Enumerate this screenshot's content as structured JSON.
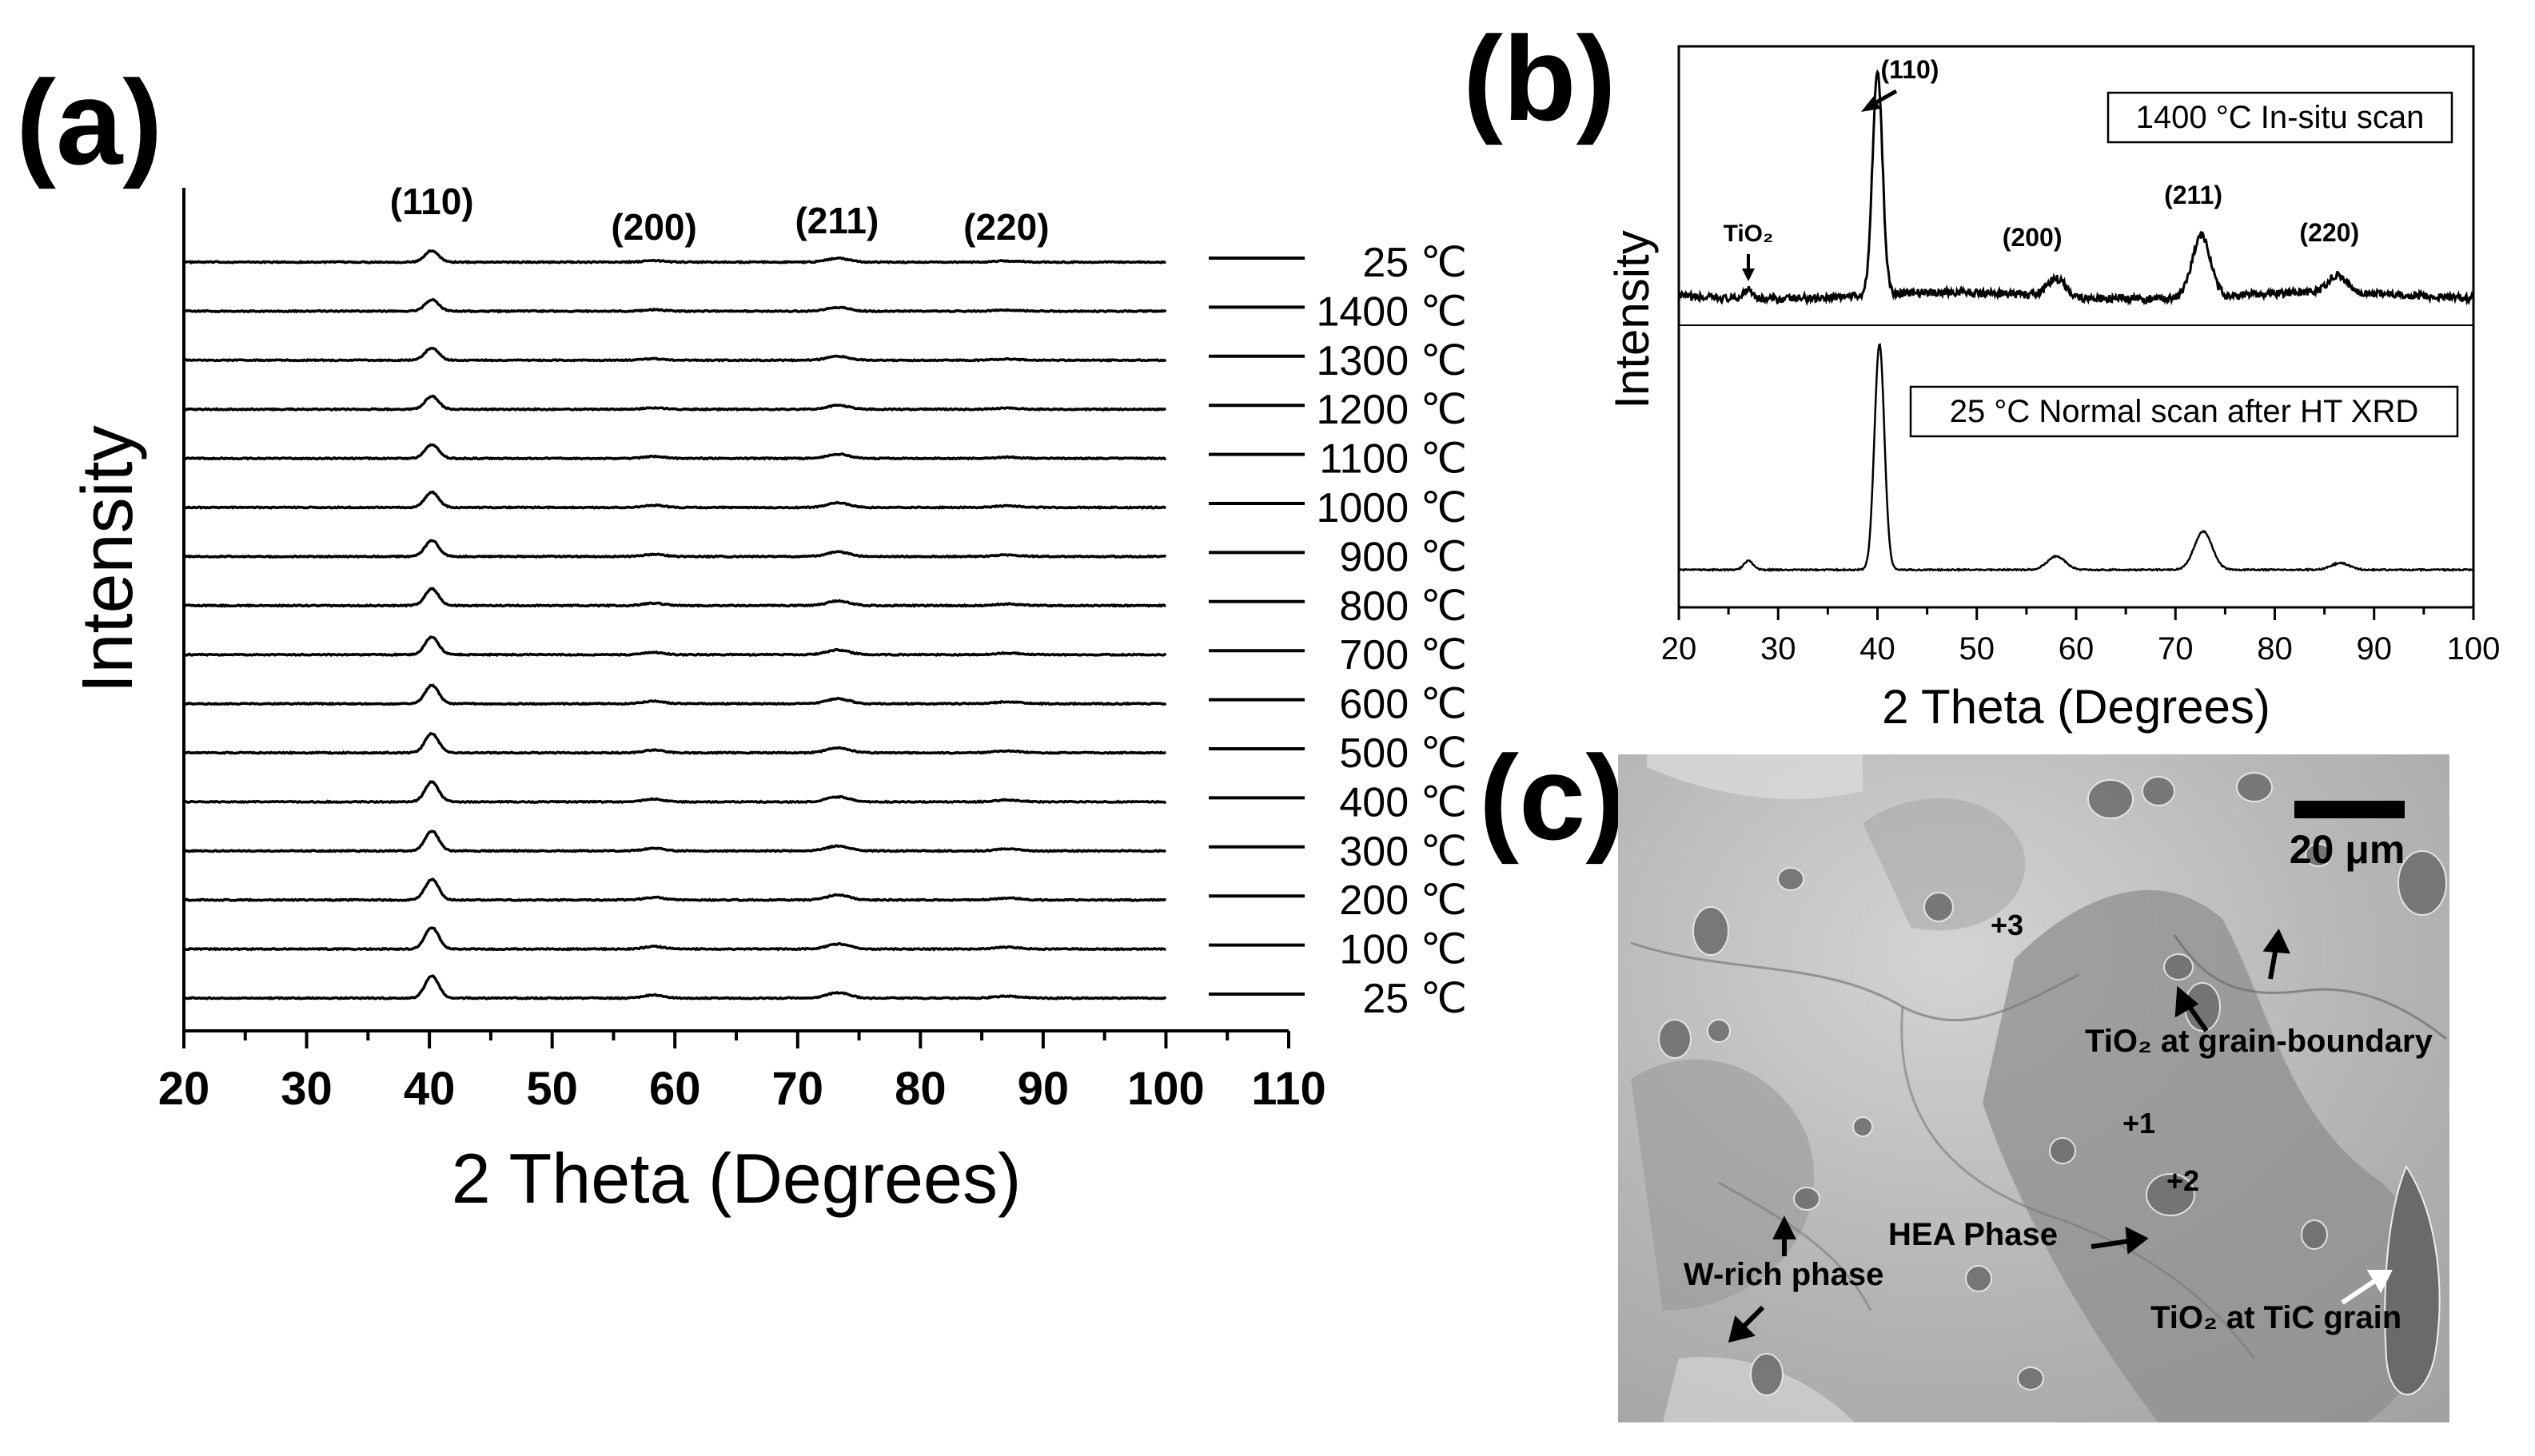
{
  "panels": {
    "a": {
      "label": "(a)",
      "chart_data": {
        "type": "line",
        "title": "",
        "xlabel": "2 Theta (Degrees)",
        "ylabel": "Intensity",
        "xlim": [
          20,
          110
        ],
        "xticks": [
          20,
          30,
          40,
          50,
          60,
          70,
          80,
          90,
          100,
          110
        ],
        "data_xrange": [
          20,
          100
        ],
        "peak_labels": [
          {
            "text": "(110)",
            "x": 40.2
          },
          {
            "text": "(200)",
            "x": 58.3
          },
          {
            "text": "(211)",
            "x": 73.2
          },
          {
            "text": "(220)",
            "x": 87.0
          }
        ],
        "peak_positions": [
          40.2,
          58.3,
          73.3,
          87.1
        ],
        "series": [
          {
            "name": "25 ℃",
            "peaks": [
              0.3,
              0.04,
              0.1,
              0.03
            ]
          },
          {
            "name": "1400 ℃",
            "peaks": [
              0.3,
              0.04,
              0.1,
              0.03
            ]
          },
          {
            "name": "1300 ℃",
            "peaks": [
              0.32,
              0.04,
              0.1,
              0.03
            ]
          },
          {
            "name": "1200 ℃",
            "peaks": [
              0.34,
              0.04,
              0.1,
              0.03
            ]
          },
          {
            "name": "1100 ℃",
            "peaks": [
              0.36,
              0.05,
              0.11,
              0.03
            ]
          },
          {
            "name": "1000 ℃",
            "peaks": [
              0.4,
              0.06,
              0.12,
              0.04
            ]
          },
          {
            "name": "900 ℃",
            "peaks": [
              0.42,
              0.06,
              0.12,
              0.04
            ]
          },
          {
            "name": "800 ℃",
            "peaks": [
              0.44,
              0.06,
              0.12,
              0.04
            ]
          },
          {
            "name": "700 ℃",
            "peaks": [
              0.46,
              0.06,
              0.12,
              0.04
            ]
          },
          {
            "name": "600 ℃",
            "peaks": [
              0.48,
              0.07,
              0.13,
              0.05
            ]
          },
          {
            "name": "500 ℃",
            "peaks": [
              0.5,
              0.07,
              0.13,
              0.05
            ]
          },
          {
            "name": "400 ℃",
            "peaks": [
              0.52,
              0.07,
              0.13,
              0.05
            ]
          },
          {
            "name": "300 ℃",
            "peaks": [
              0.52,
              0.07,
              0.13,
              0.05
            ]
          },
          {
            "name": "200 ℃",
            "peaks": [
              0.54,
              0.07,
              0.13,
              0.05
            ]
          },
          {
            "name": "100 ℃",
            "peaks": [
              0.56,
              0.07,
              0.13,
              0.05
            ]
          },
          {
            "name": "25 ℃",
            "peaks": [
              0.58,
              0.08,
              0.14,
              0.05
            ]
          }
        ],
        "grid": false,
        "legend": "right"
      }
    },
    "b": {
      "label": "(b)",
      "chart_data": {
        "type": "line",
        "title": "",
        "xlabel": "2 Theta (Degrees)",
        "ylabel": "Intensity",
        "xlim": [
          20,
          100
        ],
        "xticks": [
          20,
          30,
          40,
          50,
          60,
          70,
          80,
          90,
          100
        ],
        "series": [
          {
            "name": "1400 ℃ In-situ scan",
            "peaks": [
              {
                "x": 27.0,
                "h": 0.05
              },
              {
                "x": 40.0,
                "h": 1.0
              },
              {
                "x": 58.0,
                "h": 0.08
              },
              {
                "x": 72.6,
                "h": 0.28
              },
              {
                "x": 86.3,
                "h": 0.08
              }
            ]
          },
          {
            "name": "25 ℃ Normal scan after HT XRD",
            "peaks": [
              {
                "x": 27.0,
                "h": 0.04
              },
              {
                "x": 40.2,
                "h": 1.0
              },
              {
                "x": 58.0,
                "h": 0.06
              },
              {
                "x": 72.8,
                "h": 0.17
              },
              {
                "x": 86.6,
                "h": 0.03
              }
            ]
          }
        ],
        "legend_texts": [
          "1400 °C In-situ scan",
          "25 °C Normal scan after HT XRD"
        ],
        "peak_labels": [
          {
            "text": "(110)",
            "x": 40.2
          },
          {
            "text": "TiO₂",
            "x": 27.0
          },
          {
            "text": "(200)",
            "x": 58.0
          },
          {
            "text": "(211)",
            "x": 72.6
          },
          {
            "text": "(220)",
            "x": 86.3
          }
        ],
        "grid": false
      }
    },
    "c": {
      "label": "(c)",
      "scale_bar": "20 μm",
      "markers": [
        "+3",
        "+1",
        "+2"
      ],
      "annotations": [
        "TiO₂ at grain-boundary",
        "HEA Phase",
        "W-rich phase",
        "TiO₂ at TiC grain"
      ]
    }
  }
}
